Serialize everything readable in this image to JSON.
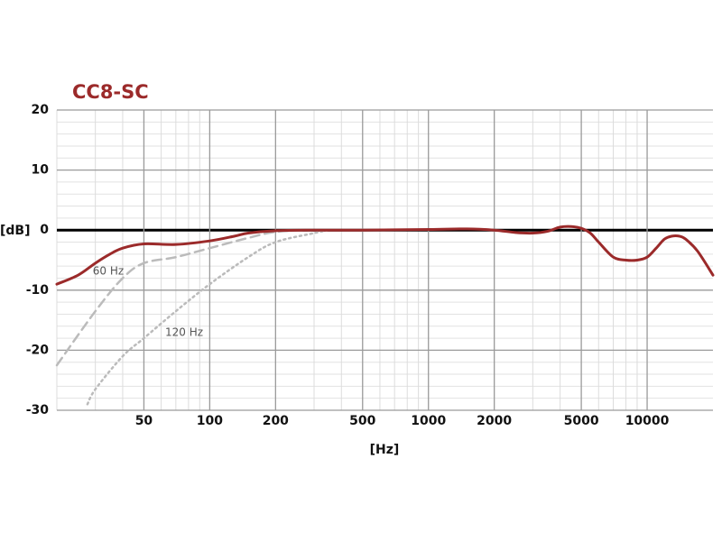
{
  "chart_data": {
    "type": "line",
    "title": "CC8-SC",
    "title_color": "#9b2a2a",
    "y_label": "[dB]",
    "x_label": "[Hz]",
    "x_log": true,
    "xlim": [
      20,
      20000
    ],
    "ylim": [
      -30,
      20
    ],
    "xticks": [
      50,
      100,
      200,
      500,
      1000,
      2000,
      5000,
      10000
    ],
    "x_minor_ticks": [
      20,
      30,
      40,
      60,
      70,
      80,
      90,
      300,
      400,
      600,
      700,
      800,
      900,
      3000,
      4000,
      6000,
      7000,
      8000,
      9000
    ],
    "yticks": [
      20,
      10,
      0,
      -10,
      -20,
      -30
    ],
    "y_minor_ticks": [
      18,
      16,
      14,
      12,
      8,
      6,
      4,
      2,
      -2,
      -4,
      -6,
      -8,
      -12,
      -14,
      -16,
      -18,
      -22,
      -24,
      -26,
      -28
    ],
    "grid": true,
    "series": [
      {
        "color": "#9b2a2a",
        "style": "solid",
        "x": [
          20,
          25,
          30,
          35,
          40,
          50,
          70,
          100,
          130,
          150,
          200,
          300,
          500,
          1000,
          1500,
          2000,
          2500,
          3000,
          3500,
          4000,
          4500,
          5000,
          5500,
          6000,
          7000,
          8000,
          9000,
          10000,
          11000,
          12000,
          13000,
          14000,
          15000,
          17000,
          20000
        ],
        "values": [
          -9,
          -7.5,
          -5.5,
          -4,
          -3,
          -2.3,
          -2.4,
          -1.8,
          -1,
          -0.5,
          -0.1,
          0,
          0,
          0.1,
          0.2,
          0,
          -0.4,
          -0.5,
          -0.2,
          0.5,
          0.6,
          0.3,
          -0.5,
          -2,
          -4.5,
          -5,
          -5,
          -4.5,
          -3,
          -1.5,
          -1,
          -1,
          -1.5,
          -3.5,
          -7.5
        ]
      },
      {
        "name": "60 Hz",
        "color": "#bbbbbb",
        "style": "dashed",
        "x": [
          20,
          30,
          40,
          50,
          70,
          100,
          150,
          200,
          300
        ],
        "values": [
          -22.5,
          -13.5,
          -8,
          -5.5,
          -4.5,
          -3,
          -1.3,
          -0.3,
          0
        ]
      },
      {
        "name": "120 Hz",
        "color": "#bbbbbb",
        "style": "dotted",
        "x": [
          27.6,
          30,
          40,
          50,
          70,
          100,
          150,
          200,
          300,
          350
        ],
        "values": [
          -29,
          -26.5,
          -21,
          -18,
          -13.5,
          -9,
          -4.5,
          -2,
          -0.5,
          0
        ]
      }
    ]
  }
}
